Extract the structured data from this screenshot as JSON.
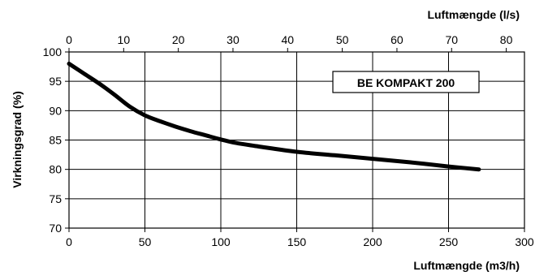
{
  "chart_data": {
    "type": "line",
    "annotation": "BE KOMPAKT 200",
    "xlabel": "Luftmængde (m3/h)",
    "x2label": "Luftmængde (l/s)",
    "ylabel": "Virkningsgrad (%)",
    "xlim": [
      0,
      300
    ],
    "x2lim": [
      0,
      83.33
    ],
    "ylim": [
      70,
      100
    ],
    "grid": true,
    "x_ticks": [
      0,
      50,
      100,
      150,
      200,
      250,
      300
    ],
    "x2_ticks": [
      0,
      10,
      20,
      30,
      40,
      50,
      60,
      70,
      80
    ],
    "y_ticks": [
      70,
      75,
      80,
      85,
      90,
      95,
      100
    ],
    "x_tick_labels": [
      "0",
      "50",
      "100",
      "150",
      "200",
      "250",
      "300"
    ],
    "x2_tick_labels": [
      "0",
      "10",
      "20",
      "30",
      "40",
      "50",
      "60",
      "70",
      "80"
    ],
    "y_tick_labels": [
      "70",
      "75",
      "80",
      "85",
      "90",
      "95",
      "100"
    ],
    "series": [
      {
        "x": [
          0,
          10,
          20,
          30,
          40,
          50,
          60,
          70,
          80,
          90,
          100,
          110,
          125,
          150,
          175,
          200,
          225,
          250,
          270
        ],
        "y": [
          98,
          96.3,
          94.6,
          92.7,
          90.7,
          89.2,
          88.2,
          87.3,
          86.5,
          85.8,
          85.1,
          84.5,
          83.9,
          83.0,
          82.4,
          81.8,
          81.2,
          80.5,
          80.0
        ]
      }
    ]
  }
}
